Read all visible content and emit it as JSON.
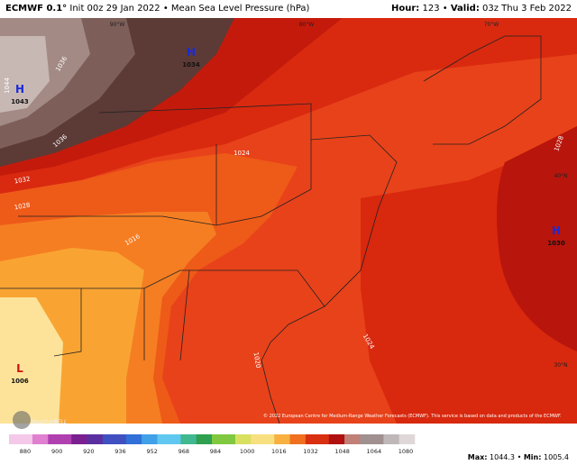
{
  "header": {
    "model": "ECMWF 0.1°",
    "init": "Init 00z 29 Jan 2022",
    "separator": "•",
    "title": "Mean Sea Level Pressure (hPa)",
    "hour_label": "Hour:",
    "hour": "123",
    "valid_label": "Valid:",
    "valid": "03z Thu 3 Feb 2022"
  },
  "map": {
    "centers": [
      {
        "label": "H",
        "value": "1043"
      },
      {
        "label": "H",
        "value": "1034"
      },
      {
        "label": "H",
        "value": "1030"
      },
      {
        "label": "L",
        "value": "1006"
      }
    ],
    "contour_labels": [
      "1044",
      "1036",
      "1036",
      "1032",
      "1028",
      "1024",
      "1016",
      "1024",
      "1028",
      "1020"
    ],
    "grid_labels": [
      "90°W",
      "80°W",
      "70°W",
      "40°N",
      "30°N"
    ],
    "credit": "© 2022 European Centre for Medium-Range Weather Forecasts (ECMWF). This service is based on data and products of the ECMWF.",
    "logo": "WeatherBELL"
  },
  "colorbar": {
    "ticks": [
      880,
      900,
      920,
      936,
      952,
      968,
      984,
      1000,
      1016,
      1032,
      1048,
      1064,
      1080
    ]
  },
  "stats": {
    "max_label": "Max:",
    "max": "1044.3",
    "separator": "•",
    "min_label": "Min:",
    "min": "1005.4"
  }
}
